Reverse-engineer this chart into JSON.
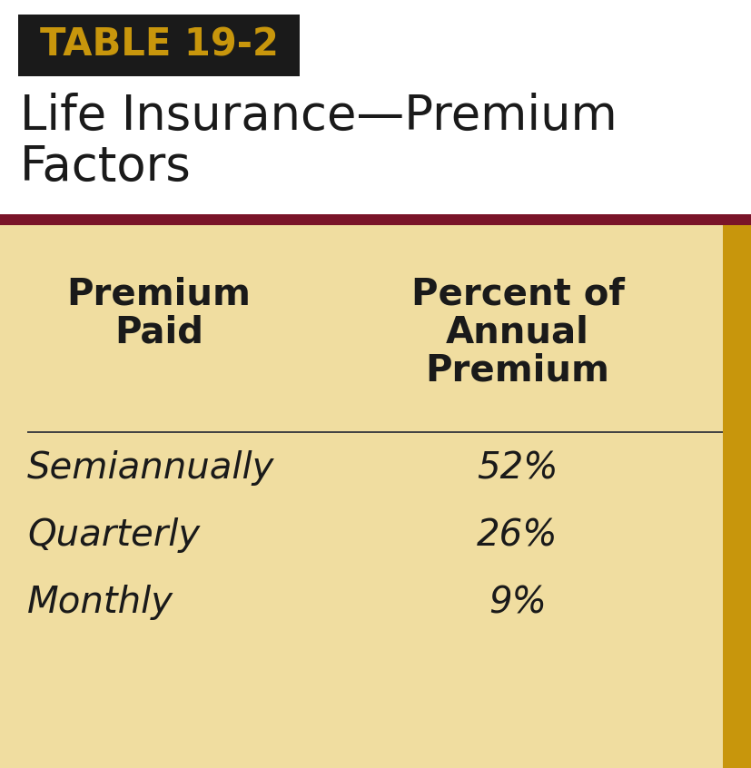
{
  "table_label": "TABLE 19-2",
  "title_line1": "Life Insurance—Premium",
  "title_line2": "Factors",
  "col1_header_line1": "Premium",
  "col1_header_line2": "Paid",
  "col2_header_line1": "Percent of",
  "col2_header_line2": "Annual",
  "col2_header_line3": "Premium",
  "rows": [
    [
      "Semiannually",
      "52%"
    ],
    [
      "Quarterly",
      "26%"
    ],
    [
      "Monthly",
      "9%"
    ]
  ],
  "white_bg": "#ffffff",
  "header_bg_color": "#1a1a1a",
  "header_text_color": "#c8960c",
  "title_text_color": "#1a1a1a",
  "body_bg_color": "#f0dda0",
  "dark_red_line": "#7a1428",
  "cell_text_color": "#1a1a1a",
  "right_stripe_color": "#c8960c",
  "divider_color": "#444444",
  "fig_width": 8.28,
  "fig_height": 8.46,
  "dpi": 100
}
